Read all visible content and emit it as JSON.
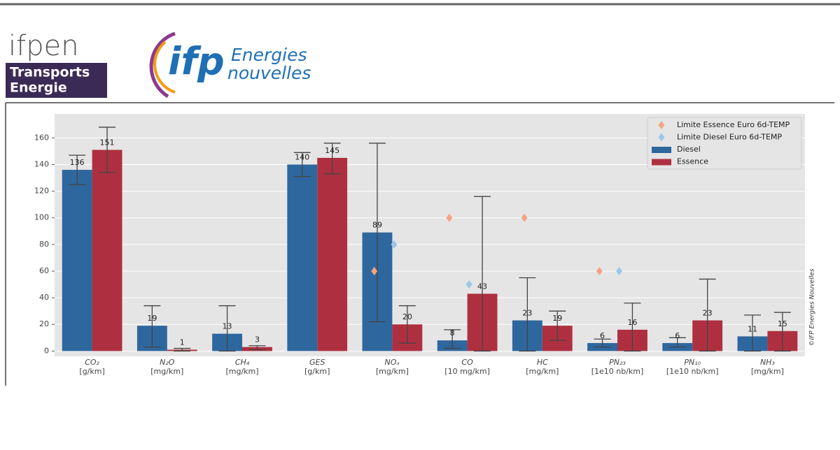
{
  "header": {
    "brand": "ifpen",
    "brand_sub": [
      "Transports",
      "Energie"
    ],
    "logo_mark": "ifp",
    "logo_text": [
      "Energies",
      "nouvelles"
    ]
  },
  "credit": "©IFP Energies Nouvelles",
  "chart_data": {
    "type": "bar",
    "categories": [
      "CO₂",
      "N₂O",
      "CH₄",
      "GES",
      "NOₓ",
      "CO",
      "HC",
      "PN₂₃",
      "PN₁₀",
      "NH₃"
    ],
    "category_units": [
      "[g/km]",
      "[mg/km]",
      "[mg/km]",
      "[g/km]",
      "[mg/km]",
      "[10 mg/km]",
      "[mg/km]",
      "[1e10 nb/km]",
      "[1e10 nb/km]",
      "[mg/km]"
    ],
    "series": [
      {
        "name": "Diesel",
        "color": "#2e679e",
        "values": [
          136,
          19,
          13,
          140,
          89,
          8,
          23,
          6,
          6,
          11
        ],
        "error_bounds": [
          [
            125,
            147
          ],
          [
            3,
            34
          ],
          [
            0,
            34
          ],
          [
            131,
            149
          ],
          [
            22,
            156
          ],
          [
            2,
            16
          ],
          [
            0,
            55
          ],
          [
            3,
            9
          ],
          [
            3,
            10
          ],
          [
            0,
            27
          ]
        ]
      },
      {
        "name": "Essence",
        "color": "#ae3040",
        "values": [
          151,
          1,
          3,
          145,
          20,
          43,
          19,
          16,
          23,
          15
        ],
        "error_bounds": [
          [
            134,
            168
          ],
          [
            0,
            2
          ],
          [
            1,
            4
          ],
          [
            133,
            156
          ],
          [
            6,
            34
          ],
          [
            0,
            116
          ],
          [
            8,
            30
          ],
          [
            0,
            36
          ],
          [
            0,
            54
          ],
          [
            0,
            29
          ]
        ]
      }
    ],
    "limits": [
      {
        "name": "Limite Essence Euro 6d-TEMP",
        "color": "#f4a582",
        "values": [
          null,
          null,
          null,
          null,
          60,
          100,
          100,
          60,
          null,
          null
        ]
      },
      {
        "name": "Limite Diesel Euro 6d-TEMP",
        "color": "#9cc8e6",
        "values": [
          null,
          null,
          null,
          null,
          80,
          50,
          null,
          60,
          null,
          null
        ]
      }
    ],
    "ylim": [
      -4,
      178
    ],
    "yticks": [
      0,
      20,
      40,
      60,
      80,
      100,
      120,
      140,
      160
    ],
    "grid": true,
    "legend": "upper right"
  }
}
